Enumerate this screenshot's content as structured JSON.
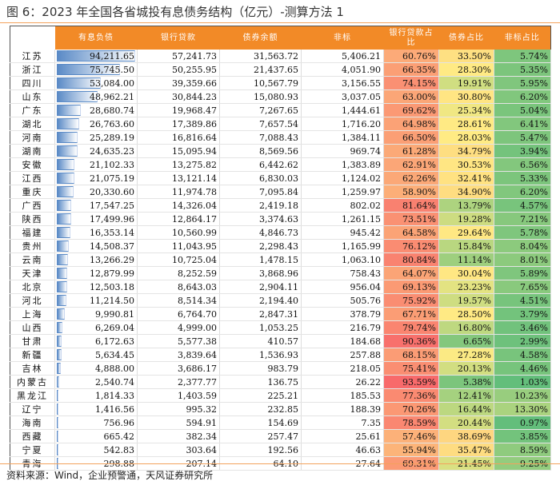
{
  "title": "图 6：2023 年全国各省城投有息债务结构（亿元）-测算方法 1",
  "source": "资料来源：Wind，企业预警通，天风证券研究所",
  "colors": {
    "header": "#f28a27",
    "bar": "#5a8ac6",
    "scale_low": "#63BE7B",
    "scale_mid": "#FFEB84",
    "scale_high": "#F8696B"
  },
  "chart_data": {
    "type": "table",
    "columns": [
      "",
      "有息负债",
      "银行贷款",
      "债券余额",
      "非标",
      "银行贷款占比",
      "债券占比",
      "非标占比"
    ],
    "rows": [
      [
        "江苏",
        "94,211.65",
        "57,241.73",
        "31,563.72",
        "5,406.21",
        "60.76%",
        "33.50%",
        "5.74%"
      ],
      [
        "浙江",
        "75,745.50",
        "50,255.95",
        "21,437.65",
        "4,051.90",
        "66.35%",
        "28.30%",
        "5.35%"
      ],
      [
        "四川",
        "53,084.00",
        "39,359.66",
        "10,567.79",
        "3,156.55",
        "74.15%",
        "19.91%",
        "5.95%"
      ],
      [
        "山东",
        "48,962.21",
        "30,844.23",
        "15,080.93",
        "3,037.05",
        "63.00%",
        "30.80%",
        "6.20%"
      ],
      [
        "广东",
        "28,680.74",
        "19,968.47",
        "7,267.65",
        "1,444.61",
        "69.62%",
        "25.34%",
        "5.04%"
      ],
      [
        "湖北",
        "26,763.60",
        "17,389.86",
        "7,657.54",
        "1,716.20",
        "64.98%",
        "28.61%",
        "6.41%"
      ],
      [
        "河南",
        "25,289.19",
        "16,816.64",
        "7,088.43",
        "1,384.11",
        "66.50%",
        "28.03%",
        "5.47%"
      ],
      [
        "湖南",
        "24,635.23",
        "15,095.94",
        "8,569.56",
        "969.74",
        "61.28%",
        "34.79%",
        "3.94%"
      ],
      [
        "安徽",
        "21,102.33",
        "13,275.82",
        "6,442.62",
        "1,383.89",
        "62.91%",
        "30.53%",
        "6.56%"
      ],
      [
        "江西",
        "21,075.19",
        "13,121.14",
        "6,830.03",
        "1,124.02",
        "62.26%",
        "32.41%",
        "5.33%"
      ],
      [
        "重庆",
        "20,330.60",
        "11,974.78",
        "7,095.84",
        "1,259.97",
        "58.90%",
        "34.90%",
        "6.20%"
      ],
      [
        "广西",
        "17,547.25",
        "14,326.04",
        "2,419.18",
        "802.02",
        "81.64%",
        "13.79%",
        "4.57%"
      ],
      [
        "陕西",
        "17,499.96",
        "12,864.17",
        "3,374.63",
        "1,261.15",
        "73.51%",
        "19.28%",
        "7.21%"
      ],
      [
        "福建",
        "16,353.14",
        "10,560.99",
        "4,846.73",
        "945.42",
        "64.58%",
        "29.64%",
        "5.78%"
      ],
      [
        "贵州",
        "14,508.37",
        "11,043.95",
        "2,298.43",
        "1,165.99",
        "76.12%",
        "15.84%",
        "8.04%"
      ],
      [
        "云南",
        "13,266.29",
        "10,725.04",
        "1,478.15",
        "1,063.10",
        "80.84%",
        "11.14%",
        "8.01%"
      ],
      [
        "天津",
        "12,879.99",
        "8,252.59",
        "3,868.96",
        "758.43",
        "64.07%",
        "30.04%",
        "5.89%"
      ],
      [
        "北京",
        "12,503.18",
        "8,643.03",
        "2,904.11",
        "956.04",
        "69.13%",
        "23.23%",
        "7.65%"
      ],
      [
        "河北",
        "11,214.50",
        "8,514.34",
        "2,194.40",
        "505.76",
        "75.92%",
        "19.57%",
        "4.51%"
      ],
      [
        "上海",
        "9,990.81",
        "6,764.70",
        "2,847.31",
        "378.79",
        "67.71%",
        "28.50%",
        "3.79%"
      ],
      [
        "山西",
        "6,269.04",
        "4,999.00",
        "1,053.25",
        "216.79",
        "79.74%",
        "16.80%",
        "3.46%"
      ],
      [
        "甘肃",
        "6,172.63",
        "5,577.38",
        "410.57",
        "184.68",
        "90.36%",
        "6.65%",
        "2.99%"
      ],
      [
        "新疆",
        "5,634.45",
        "3,839.64",
        "1,536.93",
        "257.88",
        "68.15%",
        "27.28%",
        "4.58%"
      ],
      [
        "吉林",
        "4,888.00",
        "3,686.17",
        "983.79",
        "218.05",
        "75.41%",
        "20.13%",
        "4.46%"
      ],
      [
        "内蒙古",
        "2,540.74",
        "2,377.77",
        "136.75",
        "26.22",
        "93.59%",
        "5.38%",
        "1.03%"
      ],
      [
        "黑龙江",
        "1,814.33",
        "1,403.59",
        "225.21",
        "185.53",
        "77.36%",
        "12.41%",
        "10.23%"
      ],
      [
        "辽宁",
        "1,416.56",
        "995.32",
        "232.85",
        "188.39",
        "70.26%",
        "16.44%",
        "13.30%"
      ],
      [
        "海南",
        "756.96",
        "594.91",
        "154.69",
        "7.35",
        "78.59%",
        "20.44%",
        "0.97%"
      ],
      [
        "西藏",
        "665.42",
        "382.34",
        "257.47",
        "25.61",
        "57.46%",
        "38.69%",
        "3.85%"
      ],
      [
        "宁夏",
        "542.83",
        "303.64",
        "192.56",
        "46.63",
        "55.94%",
        "35.47%",
        "8.59%"
      ],
      [
        "青海",
        "298.88",
        "207.14",
        "64.10",
        "27.64",
        "69.31%",
        "21.45%",
        "9.25%"
      ]
    ]
  }
}
